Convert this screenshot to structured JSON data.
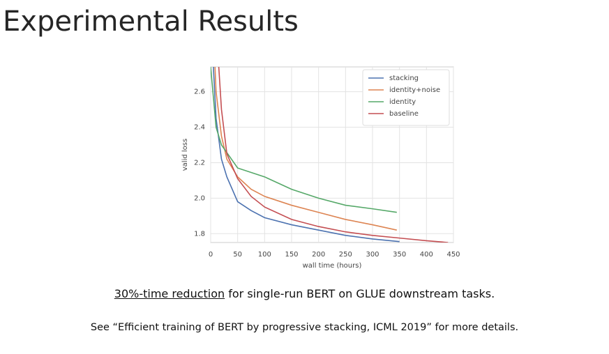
{
  "title": "Experimental Results",
  "caption": {
    "emphasis": "30%-time reduction",
    "rest": " for single-run BERT on GLUE downstream tasks."
  },
  "reference": "See “Efficient training of BERT by progressive stacking, ICML 2019” for more details.",
  "chart_data": {
    "type": "line",
    "x_label": "wall time (hours)",
    "y_label": "valid loss",
    "xlim": [
      0,
      450
    ],
    "xticks": [
      0,
      50,
      100,
      150,
      200,
      250,
      300,
      350,
      400,
      450
    ],
    "ylim": [
      1.75,
      2.74
    ],
    "yticks": [
      1.8,
      {
        "value": 2.0,
        "label": "2.0"
      },
      2.2,
      2.4,
      2.6
    ],
    "grid": true,
    "legend": "upper right",
    "series": [
      {
        "name": "stacking",
        "color": "#4c72b0",
        "x": [
          5,
          10,
          20,
          30,
          50,
          75,
          100,
          150,
          200,
          250,
          300,
          350
        ],
        "values": [
          2.74,
          2.45,
          2.22,
          2.12,
          1.98,
          1.93,
          1.89,
          1.85,
          1.82,
          1.79,
          1.77,
          1.755
        ]
      },
      {
        "name": "identity+noise",
        "color": "#dd8452",
        "x": [
          8,
          10,
          20,
          30,
          50,
          75,
          100,
          150,
          200,
          250,
          300,
          345
        ],
        "values": [
          2.74,
          2.6,
          2.35,
          2.22,
          2.12,
          2.05,
          2.01,
          1.96,
          1.92,
          1.88,
          1.85,
          1.82
        ]
      },
      {
        "name": "identity",
        "color": "#55a868",
        "x": [
          0,
          10,
          20,
          50,
          100,
          150,
          200,
          250,
          300,
          345
        ],
        "values": [
          2.74,
          2.4,
          2.3,
          2.17,
          2.12,
          2.05,
          2.0,
          1.96,
          1.94,
          1.92
        ]
      },
      {
        "name": "baseline",
        "color": "#c44e52",
        "x": [
          15,
          20,
          30,
          50,
          75,
          100,
          150,
          200,
          250,
          300,
          350,
          400,
          440
        ],
        "values": [
          2.74,
          2.5,
          2.25,
          2.11,
          2.01,
          1.95,
          1.88,
          1.84,
          1.81,
          1.79,
          1.775,
          1.76,
          1.75
        ]
      }
    ]
  }
}
